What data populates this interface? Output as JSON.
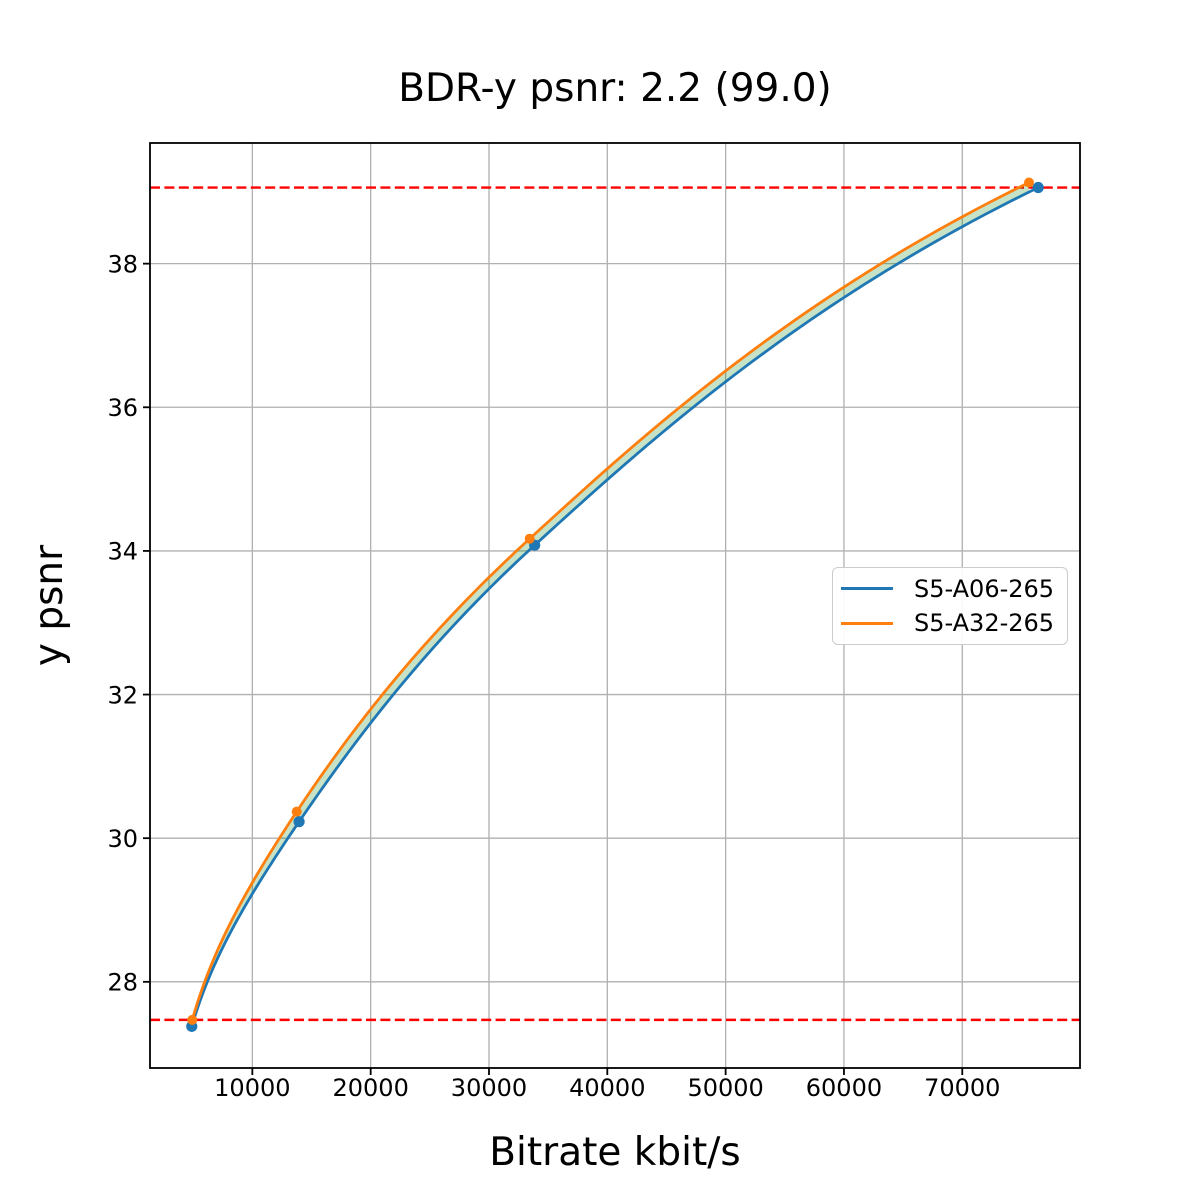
{
  "figure": {
    "background": "#ffffff"
  },
  "chart_data": {
    "type": "line",
    "title": "BDR-y psnr: 2.2 (99.0)",
    "xlabel": "Bitrate kbit/s",
    "ylabel": "y psnr",
    "xlim": [
      1350,
      79950
    ],
    "ylim": [
      26.8,
      39.68
    ],
    "xticks": [
      10000,
      20000,
      30000,
      40000,
      50000,
      60000,
      70000
    ],
    "yticks": [
      28,
      30,
      32,
      34,
      36,
      38
    ],
    "grid": true,
    "grid_color": "#b0b0b0",
    "spine_color": "#000000",
    "series": [
      {
        "name": "S5-A06-265",
        "color": "#1f77b4",
        "marker": "circle",
        "points": [
          [
            4880,
            27.38
          ],
          [
            13950,
            30.23
          ],
          [
            33860,
            34.08
          ],
          [
            76420,
            39.06
          ]
        ]
      },
      {
        "name": "S5-A32-265",
        "color": "#ff7f0e",
        "marker": "circle",
        "points": [
          [
            4920,
            27.47
          ],
          [
            13750,
            30.37
          ],
          [
            33440,
            34.17
          ],
          [
            75640,
            39.13
          ]
        ]
      }
    ],
    "fill_between": {
      "upper": "S5-A32-265",
      "lower": "S5-A06-265",
      "color": "#008000",
      "alpha": 0.22
    },
    "hlines": [
      {
        "y": 27.47,
        "color": "#ff0000",
        "style": "dashed"
      },
      {
        "y": 39.06,
        "color": "#ff0000",
        "style": "dashed"
      }
    ],
    "legend": {
      "location": "center right",
      "entries": [
        "S5-A06-265",
        "S5-A32-265"
      ]
    }
  }
}
